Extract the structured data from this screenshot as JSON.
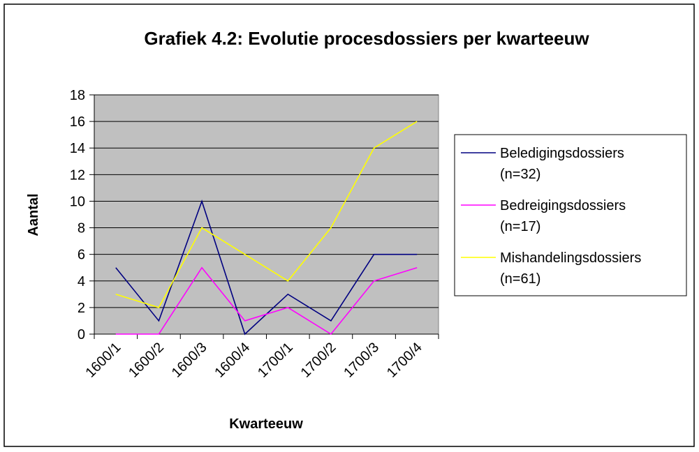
{
  "chart_data": {
    "type": "line",
    "title": "Grafiek 4.2: Evolutie procesdossiers per kwarteeuw",
    "x_label": "Kwarteeuw",
    "y_label": "Aantal",
    "categories": [
      "1600/1",
      "1600/2",
      "1600/3",
      "1600/4",
      "1700/1",
      "1700/2",
      "1700/3",
      "1700/4"
    ],
    "series": [
      {
        "name": "Beledigingsdossiers (n=32)",
        "color": "#000080",
        "values": [
          5,
          1,
          10,
          0,
          3,
          1,
          6,
          6
        ]
      },
      {
        "name": "Bedreigingsdossiers (n=17)",
        "color": "#ff00ff",
        "values": [
          0,
          0,
          5,
          1,
          2,
          0,
          4,
          5
        ]
      },
      {
        "name": "Mishandelingsdossiers (n=61)",
        "color": "#ffff00",
        "values": [
          3,
          2,
          8,
          6,
          4,
          8,
          14,
          16
        ]
      }
    ],
    "ylim": [
      0,
      18
    ],
    "yticks": [
      0,
      2,
      4,
      6,
      8,
      10,
      12,
      14,
      16,
      18
    ],
    "grid": true,
    "legend": "right",
    "plot_background": "#c0c0c0"
  }
}
